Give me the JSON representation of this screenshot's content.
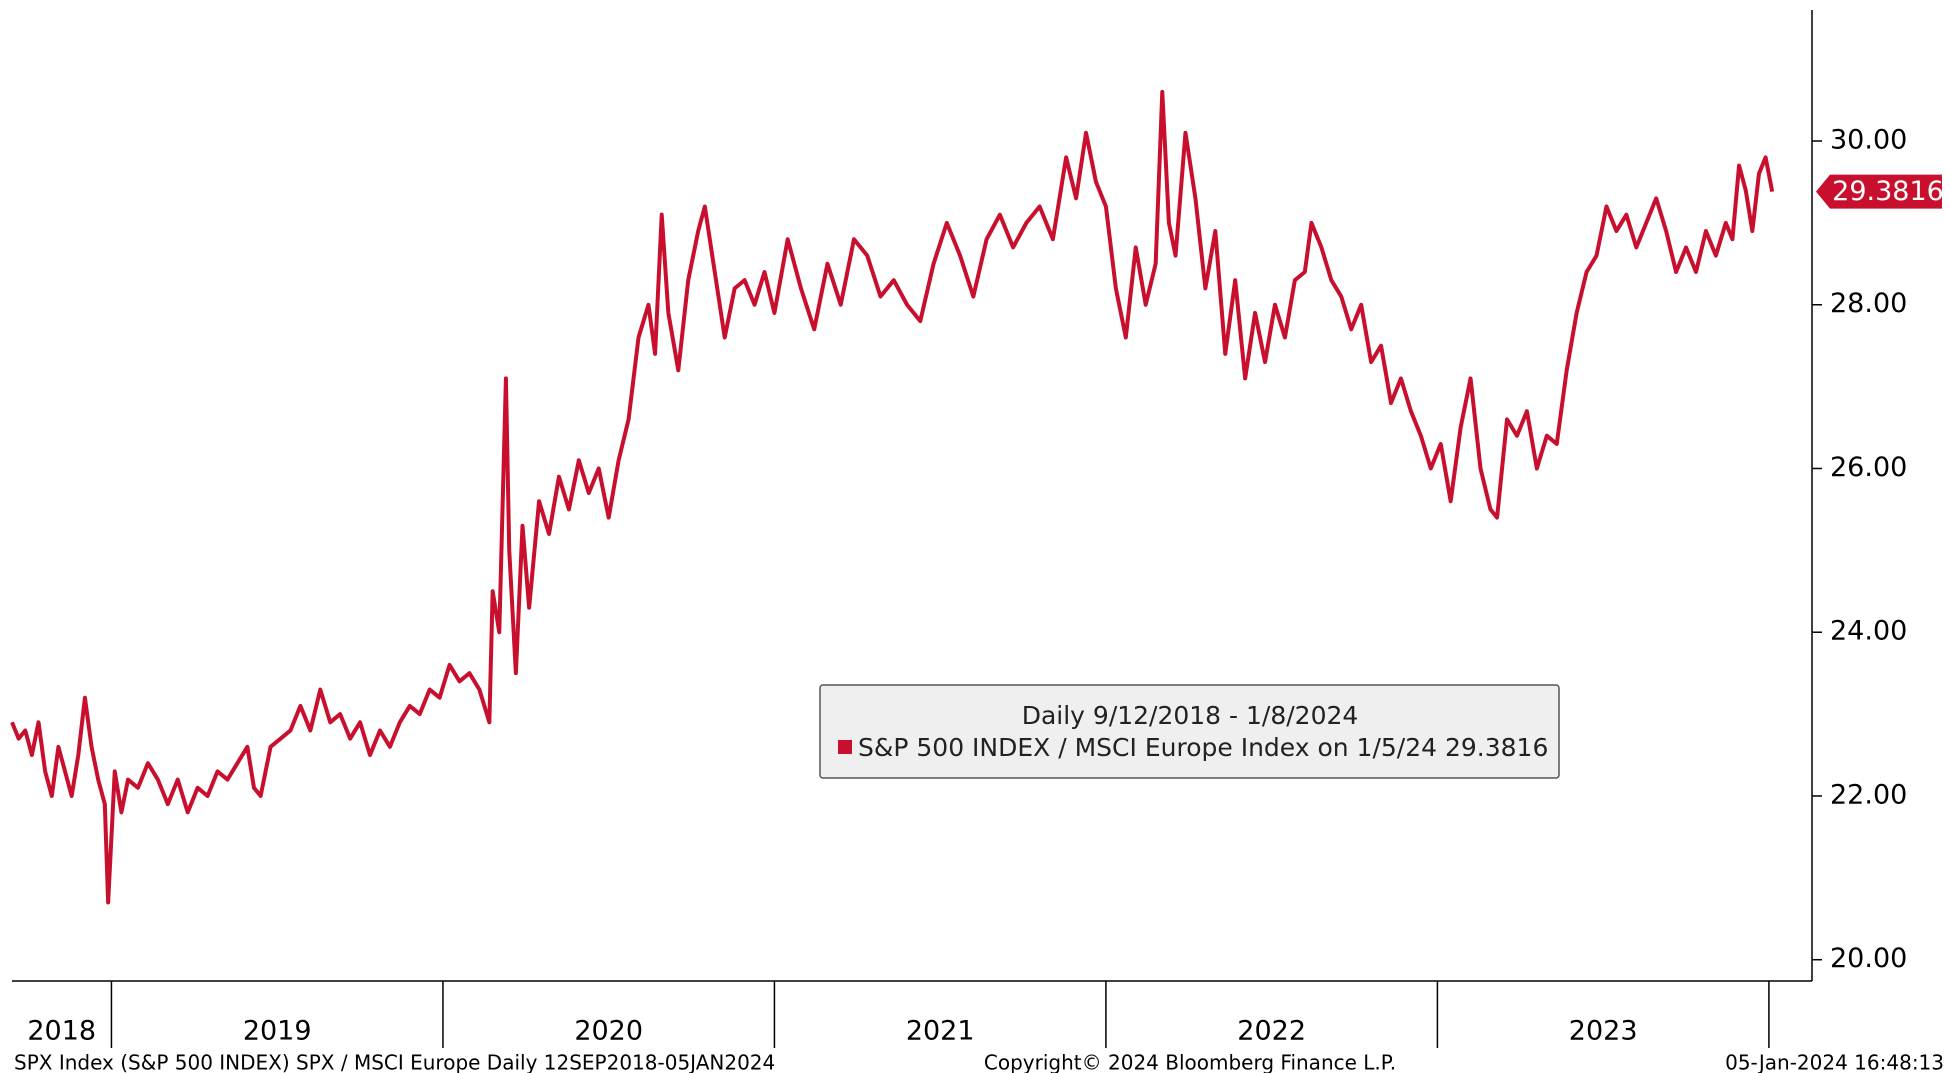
{
  "chart_data": {
    "type": "line",
    "legend_title": "Daily 9/12/2018 - 1/8/2024",
    "last_value": 29.3816,
    "footer_left": "SPX Index (S&P 500 INDEX) SPX / MSCI Europe  Daily 12SEP2018-05JAN2024",
    "footer_center": "Copyright© 2024 Bloomberg Finance L.P.",
    "footer_right": "05-Jan-2024 16:48:13",
    "xlim": [
      2018.7,
      2024.13
    ],
    "ylim": [
      19.74,
      31.6
    ],
    "yticks": [
      {
        "value": 20,
        "label": "20.00"
      },
      {
        "value": 22,
        "label": "22.00"
      },
      {
        "value": 24,
        "label": "24.00"
      },
      {
        "value": 26,
        "label": "26.00"
      },
      {
        "value": 28,
        "label": "28.00"
      },
      {
        "value": 30,
        "label": "30.00"
      }
    ],
    "xticks": [
      {
        "value": 2018.85,
        "label": "2018"
      },
      {
        "value": 2019.5,
        "label": "2019"
      },
      {
        "value": 2020.5,
        "label": "2020"
      },
      {
        "value": 2021.5,
        "label": "2021"
      },
      {
        "value": 2022.5,
        "label": "2022"
      },
      {
        "value": 2023.5,
        "label": "2023"
      }
    ],
    "year_boundaries": [
      2019,
      2020,
      2021,
      2022,
      2023,
      2024
    ],
    "x": [
      2018.7,
      2018.72,
      2018.74,
      2018.76,
      2018.78,
      2018.8,
      2018.82,
      2018.84,
      2018.86,
      2018.88,
      2018.9,
      2018.92,
      2018.94,
      2018.96,
      2018.98,
      2018.99,
      2019.01,
      2019.03,
      2019.05,
      2019.08,
      2019.11,
      2019.14,
      2019.17,
      2019.2,
      2019.23,
      2019.26,
      2019.29,
      2019.32,
      2019.35,
      2019.38,
      2019.41,
      2019.43,
      2019.45,
      2019.48,
      2019.51,
      2019.54,
      2019.57,
      2019.6,
      2019.63,
      2019.66,
      2019.69,
      2019.72,
      2019.75,
      2019.78,
      2019.81,
      2019.84,
      2019.87,
      2019.9,
      2019.93,
      2019.96,
      2019.99,
      2020.02,
      2020.05,
      2020.08,
      2020.11,
      2020.14,
      2020.15,
      2020.17,
      2020.19,
      2020.2,
      2020.22,
      2020.24,
      2020.26,
      2020.29,
      2020.32,
      2020.35,
      2020.38,
      2020.41,
      2020.44,
      2020.47,
      2020.5,
      2020.53,
      2020.56,
      2020.59,
      2020.62,
      2020.64,
      2020.66,
      2020.68,
      2020.71,
      2020.74,
      2020.77,
      2020.79,
      2020.82,
      2020.85,
      2020.88,
      2020.91,
      2020.94,
      2020.97,
      2021.0,
      2021.04,
      2021.08,
      2021.12,
      2021.16,
      2021.2,
      2021.24,
      2021.28,
      2021.32,
      2021.36,
      2021.4,
      2021.44,
      2021.48,
      2021.52,
      2021.56,
      2021.6,
      2021.64,
      2021.68,
      2021.72,
      2021.76,
      2021.8,
      2021.84,
      2021.88,
      2021.91,
      2021.94,
      2021.97,
      2022.0,
      2022.03,
      2022.06,
      2022.09,
      2022.12,
      2022.15,
      2022.17,
      2022.19,
      2022.21,
      2022.24,
      2022.27,
      2022.3,
      2022.33,
      2022.36,
      2022.39,
      2022.42,
      2022.45,
      2022.48,
      2022.51,
      2022.54,
      2022.57,
      2022.6,
      2022.62,
      2022.65,
      2022.68,
      2022.71,
      2022.74,
      2022.77,
      2022.8,
      2022.83,
      2022.86,
      2022.89,
      2022.92,
      2022.95,
      2022.98,
      2023.01,
      2023.04,
      2023.07,
      2023.1,
      2023.13,
      2023.16,
      2023.18,
      2023.21,
      2023.24,
      2023.27,
      2023.3,
      2023.33,
      2023.36,
      2023.39,
      2023.42,
      2023.45,
      2023.48,
      2023.51,
      2023.54,
      2023.57,
      2023.6,
      2023.63,
      2023.66,
      2023.69,
      2023.72,
      2023.75,
      2023.78,
      2023.81,
      2023.84,
      2023.87,
      2023.89,
      2023.91,
      2023.93,
      2023.95,
      2023.97,
      2023.99,
      2024.01
    ],
    "series": [
      {
        "name": "S&P 500 INDEX / MSCI Europe Index on 1/5/24 29.3816",
        "color": "#c8102e",
        "values": [
          22.9,
          22.7,
          22.8,
          22.5,
          22.9,
          22.3,
          22.0,
          22.6,
          22.3,
          22.0,
          22.5,
          23.2,
          22.6,
          22.2,
          21.9,
          20.7,
          22.3,
          21.8,
          22.2,
          22.1,
          22.4,
          22.2,
          21.9,
          22.2,
          21.8,
          22.1,
          22.0,
          22.3,
          22.2,
          22.4,
          22.6,
          22.1,
          22.0,
          22.6,
          22.7,
          22.8,
          23.1,
          22.8,
          23.3,
          22.9,
          23.0,
          22.7,
          22.9,
          22.5,
          22.8,
          22.6,
          22.9,
          23.1,
          23.0,
          23.3,
          23.2,
          23.6,
          23.4,
          23.5,
          23.3,
          22.9,
          24.5,
          24.0,
          27.1,
          25.0,
          23.5,
          25.3,
          24.3,
          25.6,
          25.2,
          25.9,
          25.5,
          26.1,
          25.7,
          26.0,
          25.4,
          26.1,
          26.6,
          27.6,
          28.0,
          27.4,
          29.1,
          27.9,
          27.2,
          28.3,
          28.9,
          29.2,
          28.4,
          27.6,
          28.2,
          28.3,
          28.0,
          28.4,
          27.9,
          28.8,
          28.2,
          27.7,
          28.5,
          28.0,
          28.8,
          28.6,
          28.1,
          28.3,
          28.0,
          27.8,
          28.5,
          29.0,
          28.6,
          28.1,
          28.8,
          29.1,
          28.7,
          29.0,
          29.2,
          28.8,
          29.8,
          29.3,
          30.1,
          29.5,
          29.2,
          28.2,
          27.6,
          28.7,
          28.0,
          28.5,
          30.6,
          29.0,
          28.6,
          30.1,
          29.3,
          28.2,
          28.9,
          27.4,
          28.3,
          27.1,
          27.9,
          27.3,
          28.0,
          27.6,
          28.3,
          28.4,
          29.0,
          28.7,
          28.3,
          28.1,
          27.7,
          28.0,
          27.3,
          27.5,
          26.8,
          27.1,
          26.7,
          26.4,
          26.0,
          26.3,
          25.6,
          26.5,
          27.1,
          26.0,
          25.5,
          25.4,
          26.6,
          26.4,
          26.7,
          26.0,
          26.4,
          26.3,
          27.2,
          27.9,
          28.4,
          28.6,
          29.2,
          28.9,
          29.1,
          28.7,
          29.0,
          29.3,
          28.9,
          28.4,
          28.7,
          28.4,
          28.9,
          28.6,
          29.0,
          28.8,
          29.7,
          29.4,
          28.9,
          29.6,
          29.8,
          29.3816
        ]
      }
    ]
  }
}
